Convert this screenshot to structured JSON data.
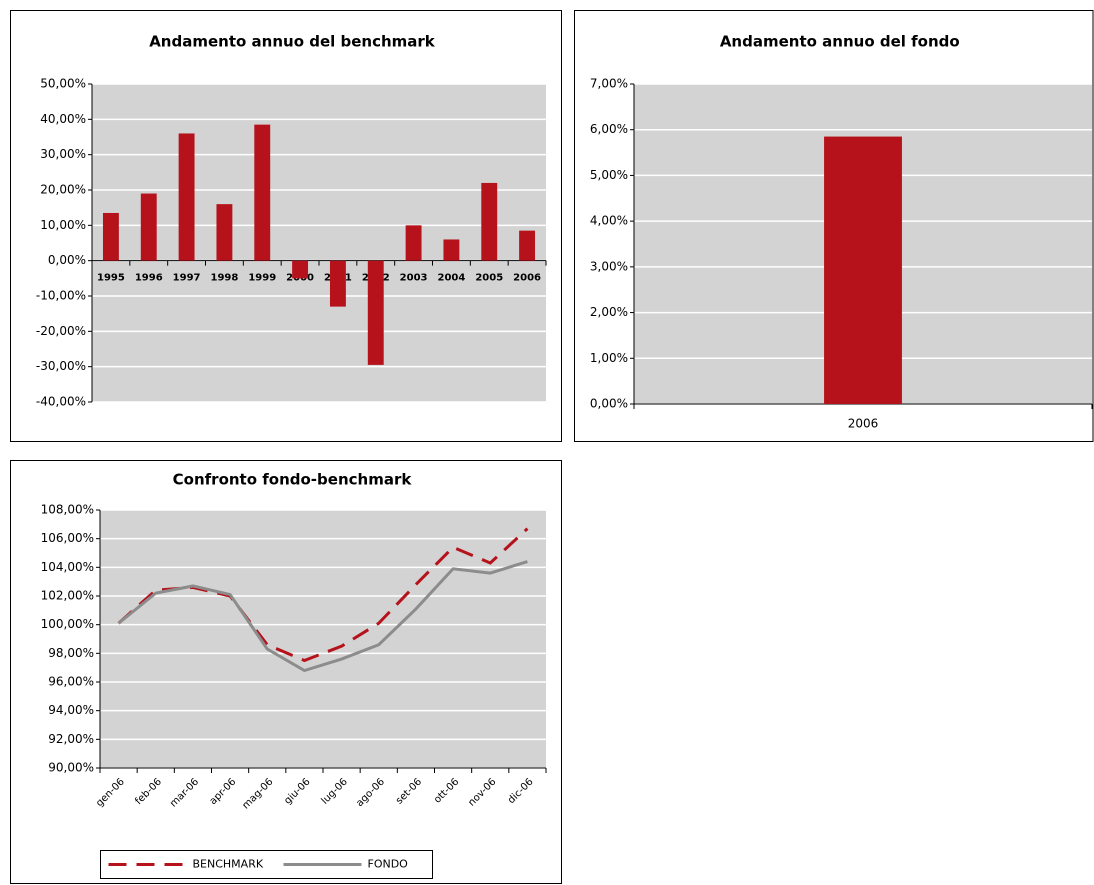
{
  "chart_data": [
    {
      "type": "bar",
      "title": "Andamento annuo del benchmark",
      "categories": [
        "1995",
        "1996",
        "1997",
        "1998",
        "1999",
        "2000",
        "2001",
        "2002",
        "2003",
        "2004",
        "2005",
        "2006"
      ],
      "values": [
        13.5,
        19,
        36,
        16,
        38.5,
        -5,
        -13,
        -29.5,
        10,
        6,
        22,
        8.5
      ],
      "color": "#b5121b",
      "ylim": [
        -40,
        50
      ],
      "yticks": [
        {
          "value": -40,
          "label": "-40,00%"
        },
        {
          "value": -30,
          "label": "-30,00%"
        },
        {
          "value": -20,
          "label": "-20,00%"
        },
        {
          "value": -10,
          "label": "-10,00%"
        },
        {
          "value": 0,
          "label": "0,00%"
        },
        {
          "value": 10,
          "label": "10,00%"
        },
        {
          "value": 20,
          "label": "20,00%"
        },
        {
          "value": 30,
          "label": "30,00%"
        },
        {
          "value": 40,
          "label": "40,00%"
        },
        {
          "value": 50,
          "label": "50,00%"
        }
      ],
      "grid": true
    },
    {
      "type": "bar",
      "title": "Andamento annuo del fondo",
      "categories": [
        "2006"
      ],
      "values": [
        5.85
      ],
      "color": "#b5121b",
      "ylim": [
        0,
        7
      ],
      "yticks": [
        {
          "value": 0,
          "label": "0,00%"
        },
        {
          "value": 1,
          "label": "1,00%"
        },
        {
          "value": 2,
          "label": "2,00%"
        },
        {
          "value": 3,
          "label": "3,00%"
        },
        {
          "value": 4,
          "label": "4,00%"
        },
        {
          "value": 5,
          "label": "5,00%"
        },
        {
          "value": 6,
          "label": "6,00%"
        },
        {
          "value": 7,
          "label": "7,00%"
        }
      ],
      "grid": true
    },
    {
      "type": "line",
      "title": "Confronto fondo-benchmark",
      "categories": [
        "gen-06",
        "feb-06",
        "mar-06",
        "apr-06",
        "mag-06",
        "giu-06",
        "lug-06",
        "ago-06",
        "set-06",
        "ott-06",
        "nov-06",
        "dic-06"
      ],
      "series": [
        {
          "name": "BENCHMARK",
          "color": "#b5121b",
          "dashed": true,
          "values": [
            100.1,
            102.4,
            102.6,
            102.0,
            98.6,
            97.5,
            98.5,
            100.1,
            102.8,
            105.4,
            104.3,
            106.7
          ]
        },
        {
          "name": "FONDO",
          "color": "#8c8c8c",
          "dashed": false,
          "values": [
            100.1,
            102.2,
            102.7,
            102.1,
            98.3,
            96.8,
            97.6,
            98.6,
            101.1,
            103.9,
            103.6,
            104.4
          ]
        }
      ],
      "ylim": [
        90,
        108
      ],
      "yticks": [
        {
          "value": 90,
          "label": "90,00%"
        },
        {
          "value": 92,
          "label": "92,00%"
        },
        {
          "value": 94,
          "label": "94,00%"
        },
        {
          "value": 96,
          "label": "96,00%"
        },
        {
          "value": 98,
          "label": "98,00%"
        },
        {
          "value": 100,
          "label": "100,00%"
        },
        {
          "value": 102,
          "label": "102,00%"
        },
        {
          "value": 104,
          "label": "104,00%"
        },
        {
          "value": 106,
          "label": "106,00%"
        },
        {
          "value": 108,
          "label": "108,00%"
        }
      ],
      "grid": true,
      "legend": "bottom"
    }
  ]
}
